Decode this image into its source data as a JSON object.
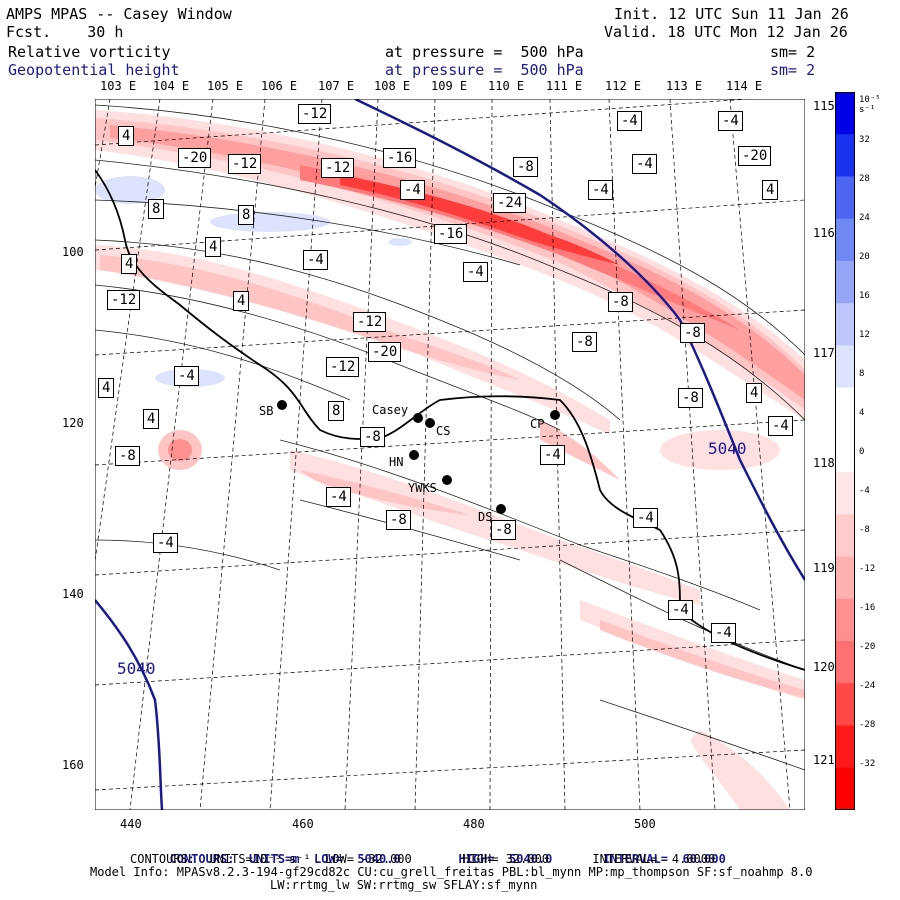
{
  "header": {
    "title": "AMPS MPAS -- Casey Window",
    "forecast": "Fcst.    30 h",
    "init": "Init. 12 UTC Sun 11 Jan 26",
    "valid": "Valid. 18 UTC Mon 12 Jan 26",
    "field1_name": "Relative vorticity",
    "field1_level": "at pressure =  500 hPa",
    "field1_sm": "sm= 2",
    "field2_name": "Geopotential height",
    "field2_level": "at pressure =  500 hPa",
    "field2_sm": "sm= 2"
  },
  "axes": {
    "top_lon_labels": [
      "103 E",
      "104 E",
      "105 E",
      "106 E",
      "107 E",
      "108 E",
      "109 E",
      "110 E",
      "111 E",
      "112 E",
      "113 E",
      "114 E"
    ],
    "right_lon_labels": [
      "115 E",
      "116 E",
      "117 E",
      "118 E",
      "119 E",
      "120 E",
      "121 E"
    ],
    "left_ticks": [
      "100",
      "120",
      "140",
      "160"
    ],
    "bottom_ticks": [
      "440",
      "460",
      "480",
      "500"
    ]
  },
  "colorbar": {
    "units": "10⁻⁵ s⁻¹",
    "labels": [
      "32",
      "28",
      "24",
      "20",
      "16",
      "12",
      "8",
      "4",
      "0",
      "-4",
      "-8",
      "-12",
      "-16",
      "-20",
      "-24",
      "-28",
      "-32"
    ],
    "colors_pos": [
      "#0000e6",
      "#1a33ee",
      "#4d66f2",
      "#7088f4",
      "#96a6f7",
      "#bcc6fa",
      "#dde3fc"
    ],
    "colors_neg": [
      "#ffe6e6",
      "#ffcccc",
      "#ffb0b0",
      "#ff9090",
      "#ff7070",
      "#ff4848",
      "#ff1a1a",
      "#ff0000"
    ]
  },
  "stations": [
    "SB",
    "Casey",
    "CS",
    "HN",
    "YWKS",
    "DS",
    "CP"
  ],
  "contour_labels": {
    "height": [
      "5040",
      "5040"
    ],
    "vorticity": [
      "-12",
      "-4",
      "-4",
      "4",
      "-20",
      "-12",
      "-16",
      "-20",
      "-12",
      "-8",
      "-4",
      "-4",
      "4",
      "-4",
      "8",
      "8",
      "-24",
      "-16",
      "4",
      "-4",
      "-4",
      "4",
      "4",
      "-12",
      "-12",
      "-8",
      "-8",
      "-20",
      "-8",
      "-12",
      "-4",
      "4",
      "4",
      "-8",
      "8",
      "4",
      "-4",
      "-8",
      "-8",
      "-4",
      "-4",
      "-4",
      "-8",
      "-4",
      "-8",
      "-4",
      "-4"
    ]
  },
  "footer": {
    "line1_contours": "CONTOURS:",
    "line1_units": "UNITS=m",
    "line1_low": "LOW=  5040.0",
    "line1_high": "HIGH=  5040.0",
    "line1_interval": "INTERVAL=  60.000",
    "line2": "CONTOURS:  UNITS=10⁻⁵ s⁻¹  LOW= -32.000       HIGH= 32.000      INTERVAL=  4.0000",
    "line3": "Model Info: MPASv8.2.3-194-gf29cd82c CU:cu_grell_freitas PBL:bl_mynn MP:mp_thompson SF:sf_noahmp 8.0",
    "line4": "LW:rrtmg_lw SW:rrtmg_sw SFLAY:sf_mynn"
  }
}
